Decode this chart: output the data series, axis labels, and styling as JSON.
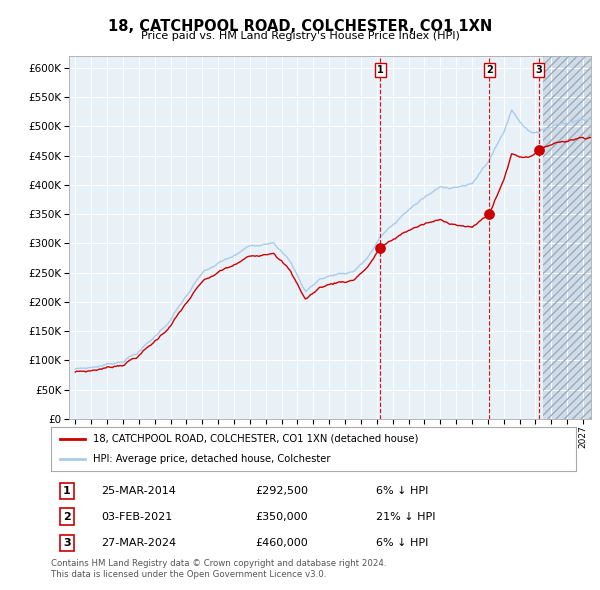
{
  "title": "18, CATCHPOOL ROAD, COLCHESTER, CO1 1XN",
  "subtitle": "Price paid vs. HM Land Registry's House Price Index (HPI)",
  "hpi_color": "#aacce8",
  "price_color": "#cc0000",
  "plot_bg_color": "#e8f0f8",
  "future_bg_color": "#d0dce8",
  "grid_color": "#ffffff",
  "ylim": [
    0,
    620000
  ],
  "yticks": [
    0,
    50000,
    100000,
    150000,
    200000,
    250000,
    300000,
    350000,
    400000,
    450000,
    500000,
    550000,
    600000
  ],
  "ytick_labels": [
    "£0",
    "£50K",
    "£100K",
    "£150K",
    "£200K",
    "£250K",
    "£300K",
    "£350K",
    "£400K",
    "£450K",
    "£500K",
    "£550K",
    "£600K"
  ],
  "xmin": 1994.6,
  "xmax": 2027.5,
  "future_start": 2024.5,
  "sale1_t": 2014.21,
  "sale1_price": 292500,
  "sale2_t": 2021.08,
  "sale2_price": 350000,
  "sale3_t": 2024.21,
  "sale3_price": 460000,
  "xtick_years": [
    1995,
    1996,
    1997,
    1998,
    1999,
    2000,
    2001,
    2002,
    2003,
    2004,
    2005,
    2006,
    2007,
    2008,
    2009,
    2010,
    2011,
    2012,
    2013,
    2014,
    2015,
    2016,
    2017,
    2018,
    2019,
    2020,
    2021,
    2022,
    2023,
    2024,
    2025,
    2026,
    2027
  ],
  "legend_label1": "18, CATCHPOOL ROAD, COLCHESTER, CO1 1XN (detached house)",
  "legend_label2": "HPI: Average price, detached house, Colchester",
  "table_rows": [
    {
      "num": "1",
      "date": "25-MAR-2014",
      "price": "£292,500",
      "pct": "6% ↓ HPI"
    },
    {
      "num": "2",
      "date": "03-FEB-2021",
      "price": "£350,000",
      "pct": "21% ↓ HPI"
    },
    {
      "num": "3",
      "date": "27-MAR-2024",
      "price": "£460,000",
      "pct": "6% ↓ HPI"
    }
  ],
  "footer": "Contains HM Land Registry data © Crown copyright and database right 2024.\nThis data is licensed under the Open Government Licence v3.0."
}
